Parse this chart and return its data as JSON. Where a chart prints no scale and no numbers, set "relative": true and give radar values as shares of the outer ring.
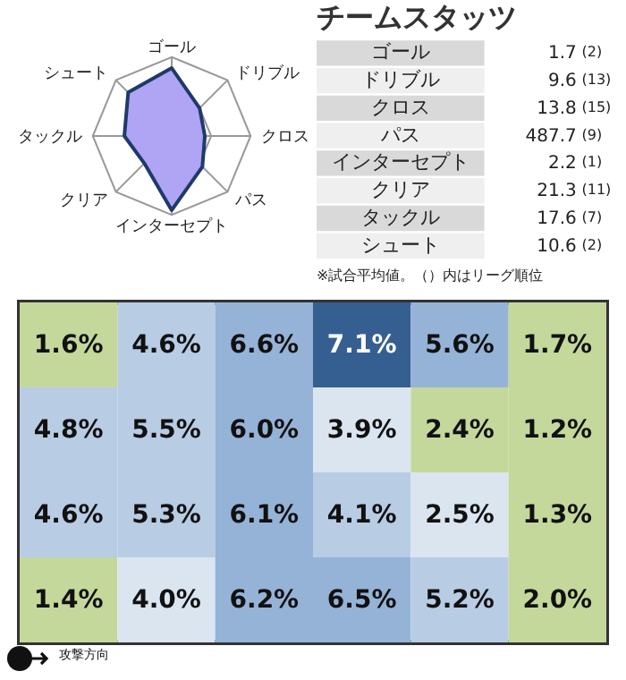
{
  "chart_data": [
    {
      "type": "radar",
      "relative": true,
      "grid": true,
      "marker": "none",
      "categories": [
        "ゴール",
        "ドリブル",
        "クロス",
        "パス",
        "インターセプト",
        "クリア",
        "タックル",
        "シュート"
      ],
      "series": [
        {
          "color": "#b0a4f4",
          "values": [
            0.86,
            0.5,
            0.42,
            0.55,
            0.94,
            0.49,
            0.6,
            0.78
          ]
        }
      ]
    },
    {
      "type": "other",
      "title": "チームスタッツ",
      "data_labels": true,
      "categories": [
        "ゴール",
        "ドリブル",
        "クロス",
        "パス",
        "インターセプト",
        "クリア",
        "タックル",
        "シュート"
      ],
      "series": [
        {
          "values": [
            1.7,
            9.6,
            13.8,
            487.7,
            2.2,
            21.3,
            17.6,
            10.6
          ]
        },
        {
          "values": [
            2,
            13,
            15,
            9,
            1,
            11,
            7,
            2
          ],
          "value_labels": [
            "(2)",
            "(13)",
            "(15)",
            "(9)",
            "(1)",
            "(11)",
            "(7)",
            "(2)"
          ]
        }
      ],
      "annotations": [
        "※試合平均値。（）内はリーグ順位"
      ]
    },
    {
      "type": "heatmap",
      "categories": [
        null,
        null,
        null,
        null,
        null,
        null
      ],
      "y_categories": [
        null,
        null,
        null,
        null
      ],
      "cells": [
        [
          1.6,
          4.6,
          6.6,
          7.1,
          5.6,
          1.7
        ],
        [
          4.8,
          5.5,
          6.0,
          3.9,
          2.4,
          1.2
        ],
        [
          4.6,
          5.3,
          6.1,
          4.1,
          2.5,
          1.3
        ],
        [
          1.4,
          4.0,
          6.2,
          6.5,
          5.2,
          2.0
        ]
      ],
      "cell_labels": [
        [
          "1.6%",
          "4.6%",
          "6.6%",
          "7.1%",
          "5.6%",
          "1.7%"
        ],
        [
          "4.8%",
          "5.5%",
          "6.0%",
          "3.9%",
          "2.4%",
          "1.2%"
        ],
        [
          "4.6%",
          "5.3%",
          "6.1%",
          "4.1%",
          "2.5%",
          "1.3%"
        ],
        [
          "1.4%",
          "4.0%",
          "6.2%",
          "6.5%",
          "5.2%",
          "2.0%"
        ]
      ],
      "colors": [
        [
          "#c5d89b",
          "#b8cce4",
          "#95b3d7",
          "#365f91",
          "#95b3d7",
          "#c5d89b"
        ],
        [
          "#b8cce4",
          "#b8cce4",
          "#95b3d7",
          "#dbe5f0",
          "#c5d89b",
          "#c5d89b"
        ],
        [
          "#b8cce4",
          "#b8cce4",
          "#95b3d7",
          "#b8cce4",
          "#dbe5f0",
          "#c5d89b"
        ],
        [
          "#c5d89b",
          "#dbe5f0",
          "#95b3d7",
          "#95b3d7",
          "#b8cce4",
          "#c5d89b"
        ]
      ],
      "annotations": [
        "攻撃方向"
      ]
    }
  ]
}
